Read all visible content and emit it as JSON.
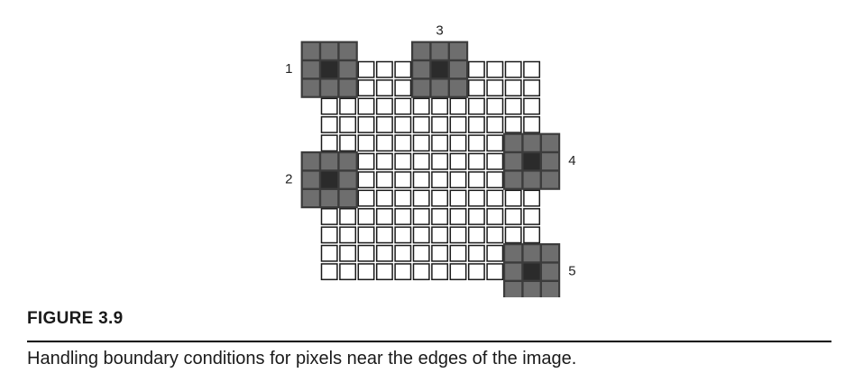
{
  "diagram": {
    "grid_columns": 12,
    "grid_rows": 12,
    "colors": {
      "grid_line": "#1a1a1a",
      "neighbor_fill": "#6e6e6e",
      "center_fill": "#2b2b2b",
      "neighbor_line": "#3c3c3c"
    },
    "windows": [
      {
        "label": "1",
        "center_col": 0,
        "center_row": 0
      },
      {
        "label": "2",
        "center_col": 0,
        "center_row": 6
      },
      {
        "label": "3",
        "center_col": 6,
        "center_row": 0
      },
      {
        "label": "4",
        "center_col": 11,
        "center_row": 5
      },
      {
        "label": "5",
        "center_col": 11,
        "center_row": 11
      }
    ]
  },
  "figure": {
    "label": "FIGURE 3.9",
    "caption": "Handling boundary conditions for pixels near the edges of the image."
  }
}
